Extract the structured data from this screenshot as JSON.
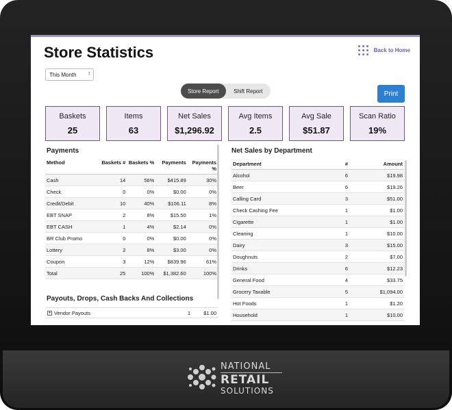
{
  "page": {
    "title": "Store Statistics",
    "back_home": "Back to Home"
  },
  "filter": {
    "period": "This Month"
  },
  "report_toggle": {
    "store": "Store Report",
    "shift": "Shift Report",
    "active": "store"
  },
  "print_label": "Print",
  "metrics": [
    {
      "label": "Baskets",
      "value": "25"
    },
    {
      "label": "Items",
      "value": "63"
    },
    {
      "label": "Net Sales",
      "value": "$1,296.92"
    },
    {
      "label": "Avg Items",
      "value": "2.5"
    },
    {
      "label": "Avg Sale",
      "value": "$51.87"
    },
    {
      "label": "Scan Ratio",
      "value": "19%"
    }
  ],
  "payments": {
    "title": "Payments",
    "headers": [
      "Method",
      "Baskets #",
      "Baskets %",
      "Payments",
      "Payments %"
    ],
    "rows": [
      [
        "Cash",
        "14",
        "56%",
        "$415.89",
        "30%"
      ],
      [
        "Check",
        "0",
        "0%",
        "$0.00",
        "0%"
      ],
      [
        "Credit/Debit",
        "10",
        "40%",
        "$106.11",
        "8%"
      ],
      [
        "EBT SNAP",
        "2",
        "8%",
        "$15.50",
        "1%"
      ],
      [
        "EBT CASH",
        "1",
        "4%",
        "$2.14",
        "0%"
      ],
      [
        "BR Club Promo",
        "0",
        "0%",
        "$0.00",
        "0%"
      ],
      [
        "Lottery",
        "2",
        "8%",
        "$3.00",
        "0%"
      ],
      [
        "Coupon",
        "3",
        "12%",
        "$839.96",
        "61%"
      ],
      [
        "Total",
        "25",
        "100%",
        "$1,382.60",
        "100%"
      ]
    ]
  },
  "payouts": {
    "title": "Payouts, Drops, Cash Backs And Collections",
    "row": {
      "label": "Vendor Payouts",
      "count": "1",
      "amount": "$1.00"
    }
  },
  "dept_sales": {
    "title": "Net Sales by Department",
    "headers": [
      "Department",
      "#",
      "Amount"
    ],
    "rows": [
      [
        "Alcohol",
        "6",
        "$19.98"
      ],
      [
        "Beer",
        "6",
        "$19.26"
      ],
      [
        "Calling Card",
        "3",
        "$51.00"
      ],
      [
        "Check Cashing Fee",
        "1",
        "$1.00"
      ],
      [
        "Cigarette",
        "1",
        "$1.00"
      ],
      [
        "Cleaning",
        "1",
        "$10.00"
      ],
      [
        "Dairy",
        "3",
        "$15.00"
      ],
      [
        "Doughnuts",
        "2",
        "$7.00"
      ],
      [
        "Drinks",
        "6",
        "$12.23"
      ],
      [
        "General Food",
        "4",
        "$33.75"
      ],
      [
        "Grocery Taxable",
        "5",
        "$1,094.00"
      ],
      [
        "Hot Foods",
        "1",
        "$1.20"
      ],
      [
        "Household",
        "1",
        "$10.00"
      ]
    ]
  },
  "brand": {
    "line1": "NATIONAL",
    "line2": "RETAIL",
    "line3": "SOLUTIONS"
  },
  "icons": {
    "apps": "grid-icon",
    "select_arrow": "chevron-updown-icon",
    "expand": "plus-box-icon",
    "brand_logo": "nrs-logo-icon"
  }
}
